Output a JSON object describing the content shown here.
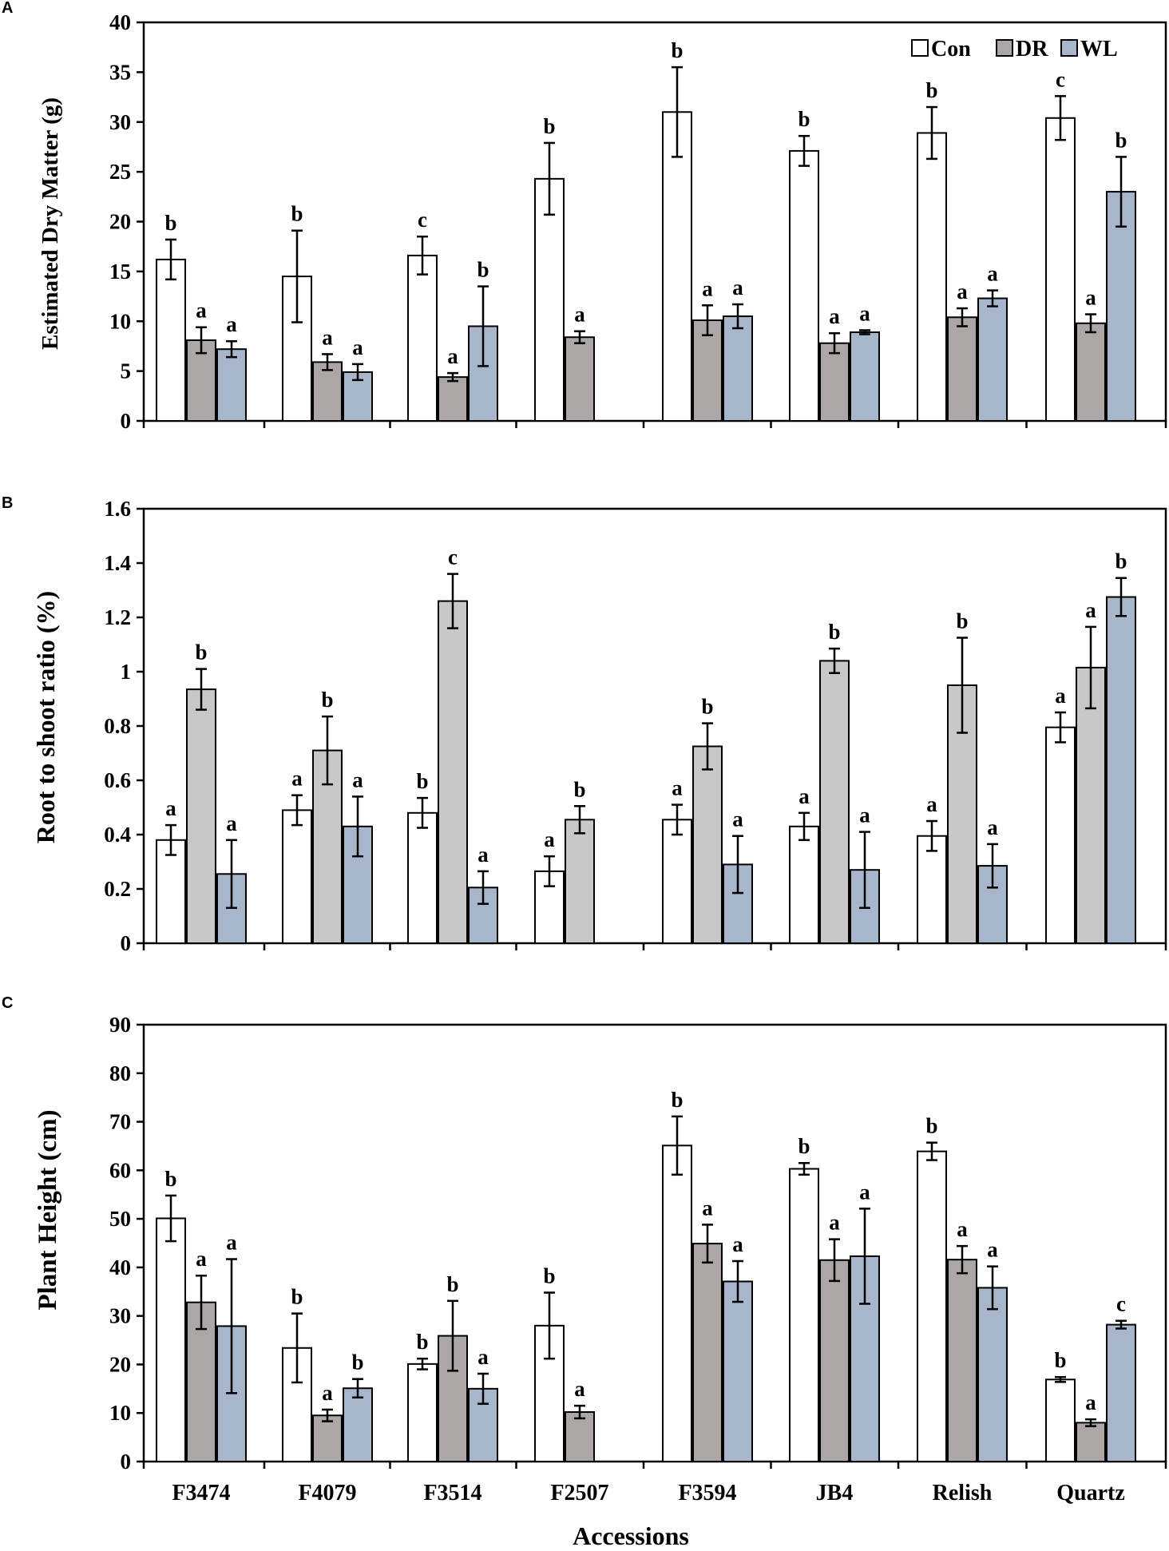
{
  "colors": {
    "Con": "#ffffff",
    "DR_A": "#aca7a6",
    "DR_B": "#c8c8c8",
    "DR_C": "#aca7a6",
    "WL": "#a8b6cc",
    "stroke": "#000000"
  },
  "xlabel": "Accessions",
  "categories": [
    "F3474",
    "F4079",
    "F3514",
    "F2507",
    "F3594",
    "JB4",
    "Relish",
    "Quartz"
  ],
  "legend": [
    "Con",
    "DR",
    "WL"
  ],
  "chart_data": [
    {
      "panel": "A",
      "type": "bar",
      "ylabel": "Estimated Dry Matter (g)",
      "ylim": [
        0,
        40
      ],
      "yticks": [
        0,
        5,
        10,
        15,
        20,
        25,
        30,
        35,
        40
      ],
      "ytick_labels": [
        "0",
        "5",
        "10",
        "15",
        "20",
        "25",
        "30",
        "35",
        "40"
      ],
      "categories": [
        "F3474",
        "F4079",
        "F3514",
        "F2507",
        "F3594",
        "JB4",
        "Relish",
        "Quartz"
      ],
      "series": [
        {
          "name": "Con",
          "values": [
            16.2,
            14.5,
            16.6,
            24.3,
            31.0,
            27.1,
            28.9,
            30.4
          ],
          "errors": [
            2.0,
            4.6,
            1.9,
            3.6,
            4.5,
            1.5,
            2.6,
            2.2
          ],
          "letters": [
            "b",
            "b",
            "c",
            "b",
            "b",
            "b",
            "b",
            "c"
          ]
        },
        {
          "name": "DR",
          "values": [
            8.1,
            5.9,
            4.4,
            8.4,
            10.1,
            7.8,
            10.4,
            9.8
          ],
          "errors": [
            1.3,
            0.8,
            0.4,
            0.6,
            1.5,
            1.0,
            0.9,
            0.9
          ],
          "letters": [
            "a",
            "a",
            "a",
            "a",
            "a",
            "a",
            "a",
            "a"
          ]
        },
        {
          "name": "WL",
          "values": [
            7.2,
            4.9,
            9.5,
            null,
            10.5,
            8.9,
            12.3,
            23.0
          ],
          "errors": [
            0.8,
            0.8,
            4.0,
            null,
            1.2,
            0.2,
            0.8,
            3.5
          ],
          "letters": [
            "a",
            "a",
            "b",
            null,
            "a",
            "a",
            "a",
            "b"
          ]
        }
      ]
    },
    {
      "panel": "B",
      "type": "bar",
      "ylabel": "Root to shoot ratio (%)",
      "ylim": [
        0,
        1.6
      ],
      "yticks": [
        0,
        0.2,
        0.4,
        0.6,
        0.8,
        1.0,
        1.2,
        1.4,
        1.6
      ],
      "ytick_labels": [
        "0",
        "0.2",
        "0.4",
        "0.6",
        "0.8",
        "1",
        "1.2",
        "1.4",
        "1.6"
      ],
      "categories": [
        "F3474",
        "F4079",
        "F3514",
        "F2507",
        "F3594",
        "JB4",
        "Relish",
        "Quartz"
      ],
      "series": [
        {
          "name": "Con",
          "values": [
            0.38,
            0.49,
            0.48,
            0.265,
            0.455,
            0.43,
            0.395,
            0.795
          ],
          "errors": [
            0.055,
            0.055,
            0.055,
            0.055,
            0.055,
            0.05,
            0.055,
            0.055
          ],
          "letters": [
            "a",
            "a",
            "b",
            "a",
            "a",
            "a",
            "a",
            "a"
          ]
        },
        {
          "name": "DR",
          "values": [
            0.935,
            0.71,
            1.26,
            0.455,
            0.725,
            1.04,
            0.95,
            1.015
          ],
          "errors": [
            0.075,
            0.125,
            0.1,
            0.05,
            0.085,
            0.045,
            0.175,
            0.15
          ],
          "letters": [
            "b",
            "b",
            "c",
            "b",
            "b",
            "b",
            "b",
            "a"
          ]
        },
        {
          "name": "WL",
          "values": [
            0.255,
            0.43,
            0.205,
            null,
            0.29,
            0.27,
            0.285,
            1.275
          ],
          "errors": [
            0.125,
            0.11,
            0.06,
            null,
            0.105,
            0.14,
            0.08,
            0.07
          ],
          "letters": [
            "a",
            "a",
            "a",
            null,
            "a",
            "a",
            "a",
            "b"
          ]
        }
      ]
    },
    {
      "panel": "C",
      "type": "bar",
      "ylabel": "Plant Height (cm)",
      "ylim": [
        0,
        90
      ],
      "yticks": [
        0,
        10,
        20,
        30,
        40,
        50,
        60,
        70,
        80,
        90
      ],
      "ytick_labels": [
        "0",
        "10",
        "20",
        "30",
        "40",
        "50",
        "60",
        "70",
        "80",
        "90"
      ],
      "categories": [
        "F3474",
        "F4079",
        "F3514",
        "F2507",
        "F3594",
        "JB4",
        "Relish",
        "Quartz"
      ],
      "series": [
        {
          "name": "Con",
          "values": [
            50.1,
            23.4,
            20.1,
            28.0,
            65.1,
            60.3,
            63.9,
            16.9
          ],
          "errors": [
            4.7,
            7.1,
            1.1,
            6.8,
            6.0,
            1.2,
            1.8,
            0.5
          ],
          "letters": [
            "b",
            "b",
            "b",
            "b",
            "b",
            "b",
            "b",
            "b"
          ]
        },
        {
          "name": "DR",
          "values": [
            32.8,
            9.5,
            25.9,
            10.2,
            44.9,
            41.5,
            41.6,
            8.0
          ],
          "errors": [
            5.5,
            1.2,
            7.2,
            1.3,
            3.9,
            4.3,
            2.8,
            0.7
          ],
          "letters": [
            "a",
            "a",
            "b",
            "a",
            "a",
            "a",
            "a",
            "a"
          ]
        },
        {
          "name": "WL",
          "values": [
            27.9,
            15.1,
            15.0,
            null,
            37.1,
            42.3,
            35.8,
            28.2
          ],
          "errors": [
            13.8,
            1.9,
            3.1,
            null,
            4.2,
            9.8,
            4.4,
            0.8
          ],
          "letters": [
            "a",
            "b",
            "a",
            null,
            "a",
            "a",
            "a",
            "c"
          ]
        }
      ]
    }
  ]
}
